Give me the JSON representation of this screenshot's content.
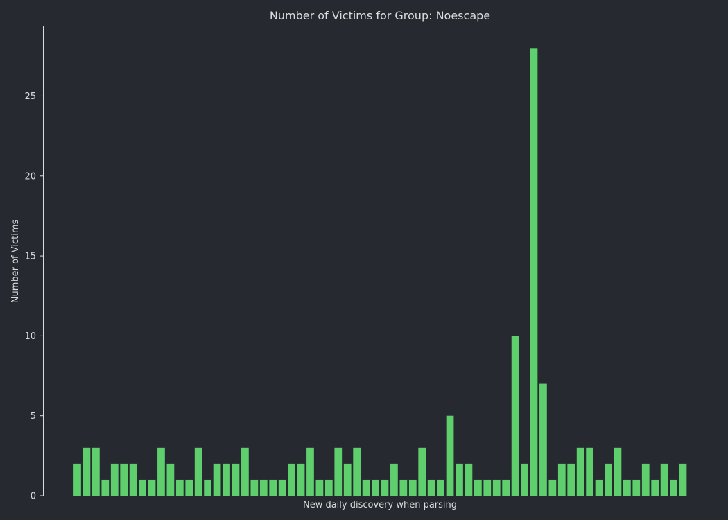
{
  "chart_data": {
    "type": "bar",
    "title": "Number of Victims for Group: Noescape",
    "xlabel": "New daily discovery when parsing",
    "ylabel": "Number of Victims",
    "ylim": [
      0,
      29.4
    ],
    "yticks": [
      0,
      5,
      10,
      15,
      20,
      25
    ],
    "xticks_shown": false,
    "grid": false,
    "values": [
      2,
      3,
      3,
      1,
      2,
      2,
      2,
      1,
      1,
      3,
      2,
      1,
      1,
      3,
      1,
      2,
      2,
      2,
      3,
      1,
      1,
      1,
      1,
      2,
      2,
      3,
      1,
      1,
      3,
      2,
      3,
      1,
      1,
      1,
      2,
      1,
      1,
      3,
      1,
      1,
      5,
      2,
      2,
      1,
      1,
      1,
      1,
      10,
      2,
      28,
      7,
      1,
      2,
      2,
      3,
      3,
      1,
      2,
      3,
      1,
      1,
      2,
      1,
      2,
      1,
      2
    ],
    "bar_color": "#5fcf6e",
    "background_color": "#26292f",
    "axes_color": "#dcdcdc"
  }
}
